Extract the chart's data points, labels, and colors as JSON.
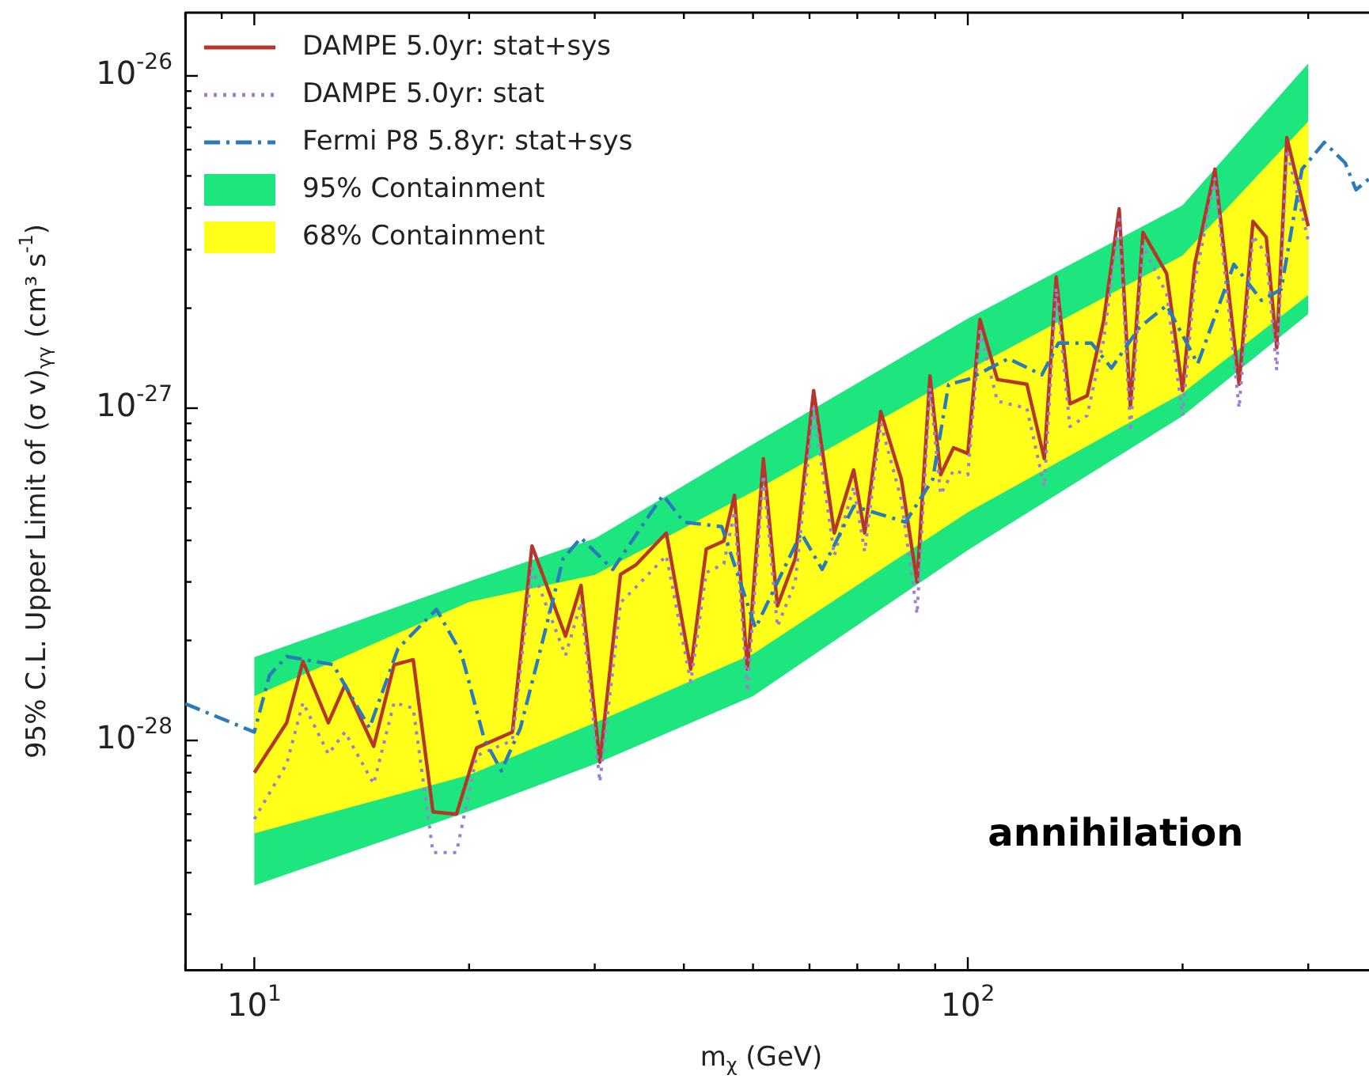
{
  "chart_data": {
    "type": "line",
    "xlabel": "m$_{χ}$ (GeV)",
    "ylabel": "95% C.L. Upper Limit of (σ v)$_{γγ}$ (cm³ s$^{-1}$)",
    "log": "xy",
    "grid": false,
    "legend": "top left",
    "annotations": [
      "annihilation"
    ],
    "xlim": [
      8,
      365
    ],
    "ylim": [
      2.04e-29,
      1.55e-26
    ],
    "xticks": [
      {
        "value": 8,
        "label": null
      },
      {
        "value": 9,
        "label": null
      },
      {
        "value": 10,
        "label": "10$^{1}$"
      },
      {
        "value": 20,
        "label": null
      },
      {
        "value": 30,
        "label": null
      },
      {
        "value": 40,
        "label": null
      },
      {
        "value": 50,
        "label": null
      },
      {
        "value": 60,
        "label": null
      },
      {
        "value": 70,
        "label": null
      },
      {
        "value": 80,
        "label": null
      },
      {
        "value": 90,
        "label": null
      },
      {
        "value": 100,
        "label": "10$^{2}$"
      },
      {
        "value": 200,
        "label": null
      },
      {
        "value": 300,
        "label": null
      }
    ],
    "yticks": [
      {
        "value": 3e-29,
        "label": null
      },
      {
        "value": 4e-29,
        "label": null
      },
      {
        "value": 5e-29,
        "label": null
      },
      {
        "value": 6e-29,
        "label": null
      },
      {
        "value": 7e-29,
        "label": null
      },
      {
        "value": 8e-29,
        "label": null
      },
      {
        "value": 9e-29,
        "label": null
      },
      {
        "value": 1e-28,
        "label": "10$^{-28}$"
      },
      {
        "value": 2e-28,
        "label": null
      },
      {
        "value": 3e-28,
        "label": null
      },
      {
        "value": 4e-28,
        "label": null
      },
      {
        "value": 5e-28,
        "label": null
      },
      {
        "value": 6e-28,
        "label": null
      },
      {
        "value": 7e-28,
        "label": null
      },
      {
        "value": 8e-28,
        "label": null
      },
      {
        "value": 9e-28,
        "label": null
      },
      {
        "value": 1e-27,
        "label": "10$^{-27}$"
      },
      {
        "value": 2e-27,
        "label": null
      },
      {
        "value": 3e-27,
        "label": null
      },
      {
        "value": 4e-27,
        "label": null
      },
      {
        "value": 5e-27,
        "label": null
      },
      {
        "value": 6e-27,
        "label": null
      },
      {
        "value": 7e-27,
        "label": null
      },
      {
        "value": 8e-27,
        "label": null
      },
      {
        "value": 9e-27,
        "label": null
      },
      {
        "value": 1e-26,
        "label": "10$^{-26}$"
      }
    ],
    "series": [
      {
        "name": "DAMPE 5.0yr: stat+sys",
        "line_style": "solid",
        "color": "#b5372c",
        "x": [
          10,
          11.1,
          11.7,
          12.7,
          13.4,
          14.7,
          15.7,
          16.7,
          17.8,
          19.2,
          20.5,
          23,
          24.5,
          27.3,
          28.7,
          30.5,
          32.6,
          34.3,
          37.8,
          40.9,
          43,
          45.5,
          47.1,
          49.1,
          51.7,
          54.1,
          57.3,
          60.8,
          65,
          69.2,
          71.7,
          75.5,
          80.7,
          84.9,
          88.5,
          91.6,
          95.5,
          100,
          104,
          110,
          121,
          128,
          133,
          139,
          147,
          155,
          163,
          169,
          176,
          190,
          200,
          208,
          222,
          240,
          251,
          262,
          271,
          280,
          300
        ],
        "values": [
          8e-29,
          1.13e-28,
          1.73e-28,
          1.13e-28,
          1.47e-28,
          9.6e-29,
          1.69e-28,
          1.75e-28,
          6.1e-29,
          6e-29,
          9.5e-29,
          1.06e-28,
          3.85e-28,
          2.06e-28,
          2.93e-28,
          8.6e-29,
          3.16e-28,
          3.38e-28,
          4.21e-28,
          1.64e-28,
          3.77e-28,
          3.98e-28,
          5.47e-28,
          1.64e-28,
          7.05e-28,
          2.54e-28,
          3.53e-28,
          1.13e-27,
          4.21e-28,
          6.52e-28,
          4.21e-28,
          9.77e-28,
          6.11e-28,
          3e-28,
          1.25e-27,
          6.3e-28,
          7.6e-28,
          7.3e-28,
          1.85e-27,
          1.22e-27,
          1.18e-27,
          7.05e-28,
          2.48e-27,
          1.03e-27,
          1.09e-27,
          1.83e-27,
          3.98e-27,
          1.01e-27,
          3.38e-27,
          2.54e-27,
          1.13e-27,
          2.71e-27,
          5.24e-27,
          1.18e-27,
          3.65e-27,
          3.27e-27,
          1.52e-27,
          6.52e-27,
          3.53e-27
        ]
      },
      {
        "name": "DAMPE 5.0yr: stat",
        "line_style": "dotted",
        "color": "#9b7fd4",
        "x": [
          10,
          11.1,
          11.7,
          12.7,
          13.4,
          14.7,
          15.7,
          16.7,
          17.8,
          19.2,
          20.5,
          23,
          24.5,
          27.3,
          28.7,
          30.5,
          32.6,
          34.3,
          37.8,
          40.9,
          43,
          45.5,
          47.1,
          49.1,
          51.7,
          54.1,
          57.3,
          60.8,
          65,
          69.2,
          71.7,
          75.5,
          80.7,
          84.9,
          88.5,
          91.6,
          95.5,
          100,
          104,
          110,
          121,
          128,
          133,
          139,
          147,
          155,
          163,
          169,
          176,
          190,
          200,
          208,
          222,
          240,
          251,
          262,
          271,
          280,
          300
        ],
        "values": [
          5.8e-29,
          8.5e-29,
          1.3e-28,
          9.1e-29,
          1.06e-28,
          7.4e-29,
          1.3e-28,
          1.25e-28,
          4.6e-29,
          4.6e-29,
          9e-29,
          1e-28,
          3.3e-28,
          1.8e-28,
          2.6e-28,
          7.5e-29,
          2.6e-28,
          2.9e-28,
          3.6e-28,
          1.5e-28,
          3.2e-28,
          3.4e-28,
          4.9e-28,
          1.4e-28,
          6.3e-28,
          2.2e-28,
          3e-28,
          1e-27,
          3.6e-28,
          5.8e-28,
          3.7e-28,
          9e-28,
          5.3e-28,
          2.4e-28,
          1.15e-27,
          5.5e-28,
          6.5e-28,
          6.3e-28,
          1.7e-27,
          1.05e-27,
          1e-27,
          5.8e-28,
          2.3e-27,
          8.8e-28,
          9.5e-28,
          1.6e-27,
          3.7e-27,
          8.5e-28,
          3.1e-27,
          2.2e-27,
          9.5e-28,
          2.4e-27,
          4.9e-27,
          1e-27,
          3.3e-27,
          2.9e-27,
          1.3e-27,
          6e-27,
          3.2e-27
        ]
      },
      {
        "name": "Fermi P8 5.8yr: stat+sys",
        "line_style": "dashdot",
        "color": "#2b7bba",
        "x": [
          8,
          10,
          10.5,
          11.1,
          12.9,
          14.5,
          15.9,
          18,
          19.5,
          21,
          22.2,
          23.6,
          25.2,
          27.1,
          28.7,
          31.8,
          36.1,
          37.4,
          40,
          45.2,
          50.4,
          58.4,
          62.5,
          69.2,
          81.8,
          89.3,
          94,
          100,
          114,
          127,
          134,
          149,
          159,
          174,
          190,
          210,
          236,
          258,
          275,
          294,
          316,
          338,
          350,
          365
        ],
        "values": [
          1.29e-28,
          1.06e-28,
          1.57e-28,
          1.79e-28,
          1.69e-28,
          1.09e-28,
          1.89e-28,
          2.48e-28,
          1.83e-28,
          1.01e-28,
          8.1e-29,
          1.09e-28,
          1.89e-28,
          3.53e-28,
          4.07e-28,
          3.27e-28,
          4.9e-28,
          5.47e-28,
          4.54e-28,
          4.4e-28,
          2.18e-28,
          4.21e-28,
          3.27e-28,
          5.07e-28,
          4.54e-28,
          6.11e-28,
          1.18e-27,
          1.22e-27,
          1.41e-27,
          1.26e-27,
          1.57e-27,
          1.57e-27,
          1.32e-27,
          1.75e-27,
          2.04e-27,
          1.36e-27,
          2.71e-27,
          2.11e-27,
          2.28e-27,
          5.24e-27,
          6.31e-27,
          5.47e-27,
          4.54e-27,
          4.9e-27
        ]
      },
      {
        "name": "95% Containment",
        "color": "#1ee67f",
        "x": [
          10,
          20,
          30,
          50,
          100,
          200,
          300
        ],
        "values": [
          null,
          null,
          null,
          null,
          null,
          null,
          null
        ],
        "lower": [
          3.66e-29,
          6.12e-29,
          8.49e-29,
          1.36e-28,
          3.74e-28,
          9.46e-28,
          1.92e-27
        ],
        "upper": [
          1.78e-28,
          3.01e-28,
          4.05e-28,
          7.79e-28,
          1.86e-27,
          4.08e-27,
          1.09e-26
        ]
      },
      {
        "name": "68% Containment",
        "color": "#ffff1a",
        "x": [
          10,
          20,
          30,
          50,
          100,
          200,
          300
        ],
        "values": [
          null,
          null,
          null,
          null,
          null,
          null,
          null
        ],
        "lower": [
          5.25e-29,
          7.87e-29,
          1.13e-28,
          1.82e-28,
          4.86e-28,
          1.11e-27,
          2.19e-27
        ],
        "upper": [
          1.36e-28,
          2.61e-28,
          3.15e-28,
          5.61e-28,
          1.3e-27,
          2.88e-27,
          7.29e-27
        ]
      }
    ]
  }
}
